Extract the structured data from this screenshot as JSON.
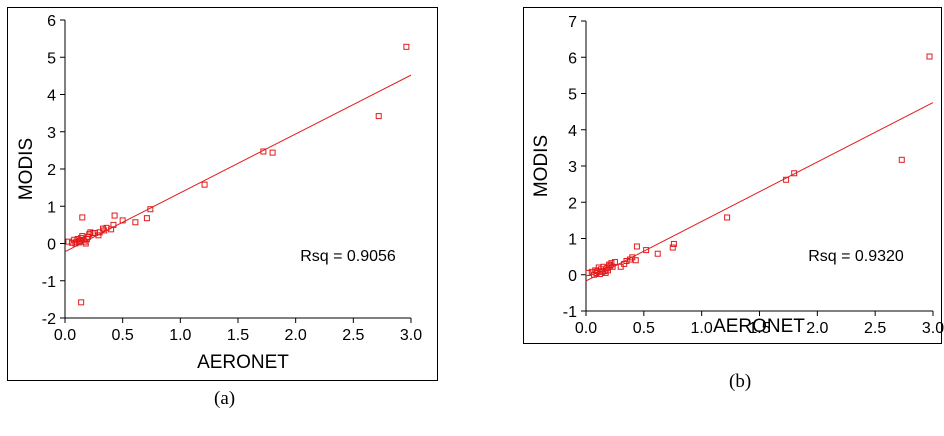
{
  "captions": [
    "(a)",
    "(b)"
  ],
  "colors": {
    "points": "#e31a1c",
    "fit_line": "#e31a1c",
    "axes": "#000000"
  },
  "chart_data": [
    {
      "type": "scatter",
      "title": "",
      "xlabel": "AERONET",
      "ylabel": "MODIS",
      "xlim": [
        0.0,
        3.0
      ],
      "ylim": [
        -2,
        6
      ],
      "xticks": [
        "0.0",
        "0.5",
        "1.0",
        "1.5",
        "2.0",
        "2.5",
        "3.0"
      ],
      "yticks": [
        "-2",
        "-1",
        "0",
        "1",
        "2",
        "3",
        "4",
        "5",
        "6"
      ],
      "annotation": "Rsq = 0.9056",
      "grid": false,
      "fit_line": {
        "x": [
          0.0,
          3.0
        ],
        "y": [
          -0.22,
          4.52
        ]
      },
      "series": [
        {
          "x": [
            0.03,
            0.06,
            0.08,
            0.09,
            0.1,
            0.11,
            0.12,
            0.13,
            0.14,
            0.15,
            0.16,
            0.17,
            0.18,
            0.19,
            0.2,
            0.21,
            0.22,
            0.24,
            0.26,
            0.29,
            0.3,
            0.33,
            0.34,
            0.36,
            0.4,
            0.42,
            0.43,
            0.5,
            0.61,
            0.71,
            0.74,
            0.15,
            0.14,
            1.21,
            1.72,
            1.8,
            2.72,
            2.96
          ],
          "y": [
            0.05,
            0.02,
            0.1,
            0.0,
            0.05,
            0.12,
            0.03,
            0.08,
            0.15,
            0.2,
            0.1,
            0.05,
            0.0,
            0.12,
            0.18,
            0.25,
            0.3,
            0.28,
            0.28,
            0.22,
            0.3,
            0.4,
            0.35,
            0.42,
            0.38,
            0.5,
            0.75,
            0.62,
            0.57,
            0.68,
            0.92,
            0.7,
            -1.58,
            1.58,
            2.47,
            2.44,
            3.42,
            5.28
          ]
        }
      ]
    },
    {
      "type": "scatter",
      "title": "",
      "xlabel": "AERONET",
      "ylabel": "MODIS",
      "xlim": [
        0.0,
        3.0
      ],
      "ylim": [
        -1,
        7
      ],
      "xticks": [
        "0.0",
        "0.5",
        "1.0",
        "1.5",
        "2.0",
        "2.5",
        "3.0"
      ],
      "yticks": [
        "-1",
        "0",
        "1",
        "2",
        "3",
        "4",
        "5",
        "6",
        "7"
      ],
      "annotation": "Rsq = 0.9320",
      "grid": false,
      "fit_line": {
        "x": [
          0.0,
          3.0
        ],
        "y": [
          -0.17,
          4.75
        ]
      },
      "series": [
        {
          "x": [
            0.02,
            0.05,
            0.07,
            0.08,
            0.09,
            0.1,
            0.11,
            0.12,
            0.13,
            0.14,
            0.15,
            0.16,
            0.17,
            0.18,
            0.19,
            0.2,
            0.21,
            0.22,
            0.23,
            0.25,
            0.3,
            0.33,
            0.35,
            0.38,
            0.4,
            0.43,
            0.44,
            0.52,
            0.62,
            0.75,
            0.76,
            1.22,
            1.73,
            1.8,
            2.73,
            2.97
          ],
          "y": [
            0.05,
            0.08,
            0.0,
            0.12,
            0.05,
            0.1,
            0.2,
            0.02,
            0.15,
            0.08,
            0.22,
            0.1,
            0.05,
            0.18,
            0.12,
            0.28,
            0.25,
            0.32,
            0.22,
            0.35,
            0.22,
            0.3,
            0.38,
            0.42,
            0.48,
            0.4,
            0.78,
            0.68,
            0.58,
            0.75,
            0.85,
            1.58,
            2.62,
            2.8,
            3.17,
            6.02
          ]
        }
      ]
    }
  ]
}
